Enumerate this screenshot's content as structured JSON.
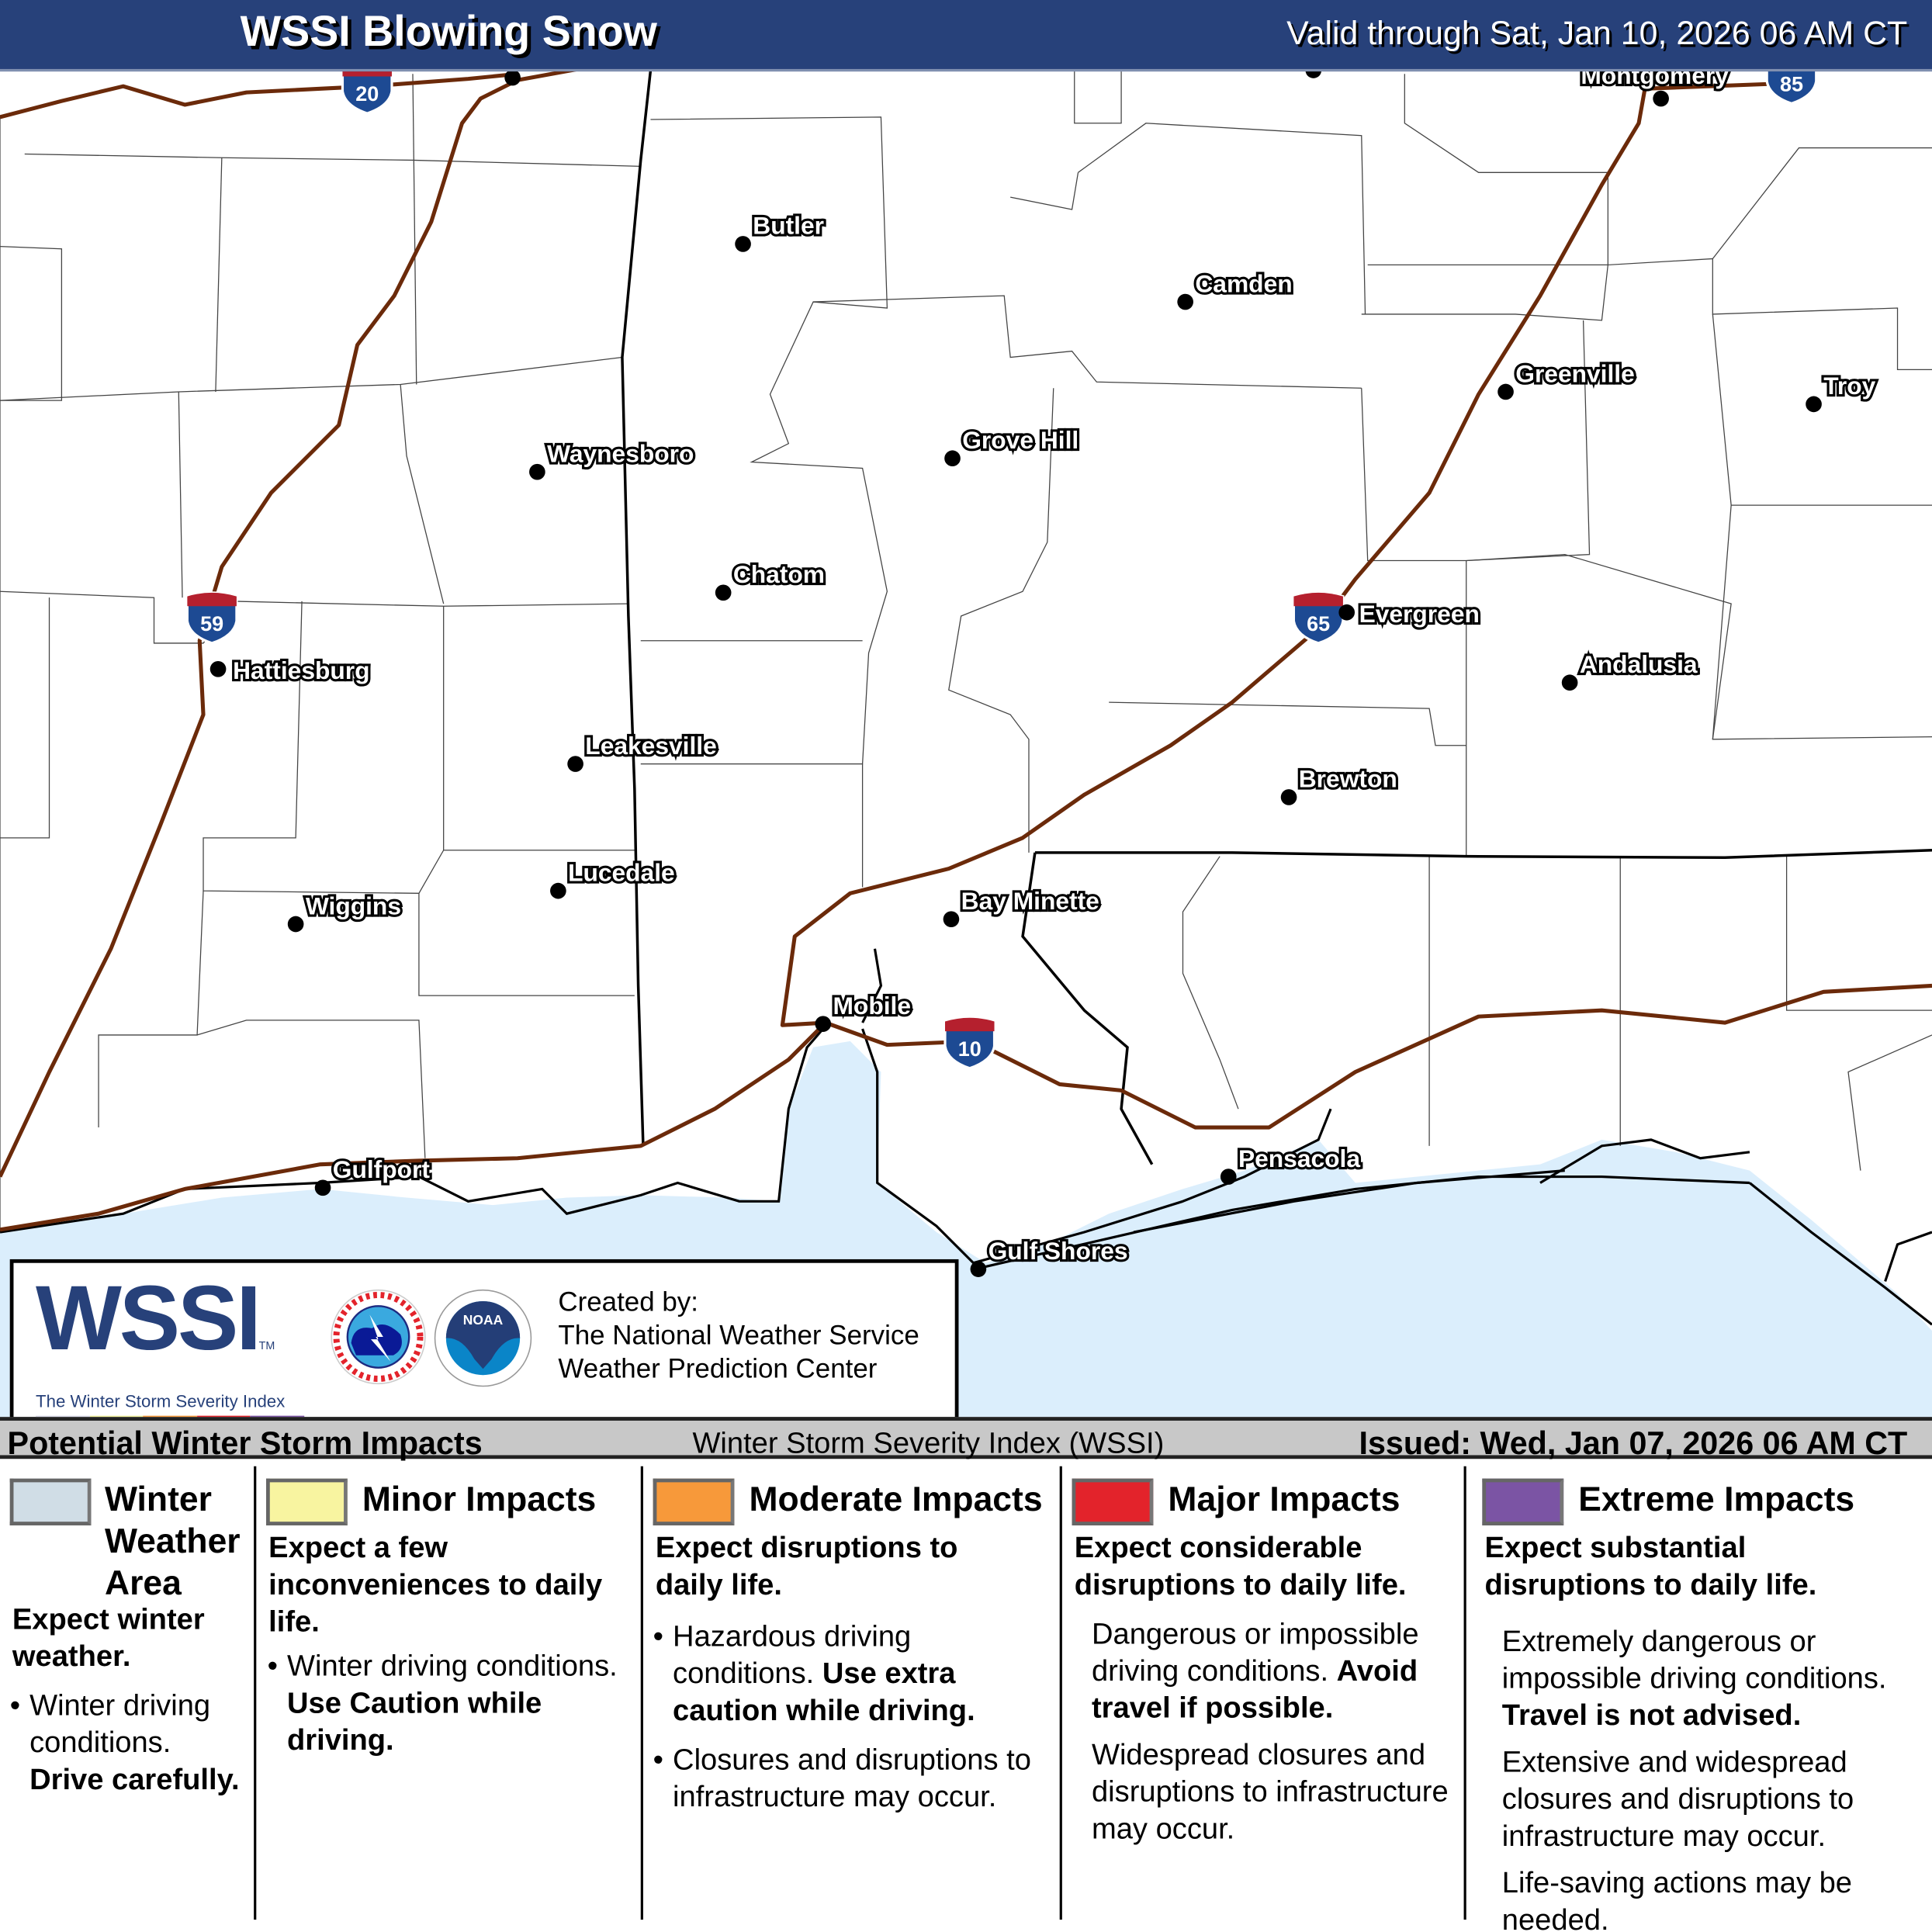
{
  "header": {
    "title": "WSSI Blowing Snow",
    "valid": "Valid through Sat, Jan 10, 2026 06 AM CT"
  },
  "map": {
    "colors": {
      "water": "#dbeefc",
      "interstate": "#6b2a0a",
      "shield_blue": "#1d4a93",
      "shield_red": "#b5202e"
    },
    "interstates": [
      "20",
      "59",
      "65",
      "10",
      "85"
    ],
    "cities": [
      "Butler",
      "Camden",
      "Greenville",
      "Troy",
      "Grove Hill",
      "Waynesboro",
      "Chatom",
      "Evergreen",
      "Hattiesburg",
      "Andalusia",
      "Leakesville",
      "Brewton",
      "Lucedale",
      "Wiggins",
      "Bay Minette",
      "Mobile",
      "Gulfport",
      "Pensacola",
      "Gulf Shores",
      "Montgomery"
    ]
  },
  "credit": {
    "logo": "WSSI",
    "logo_sub": "The Winter Storm Severity Index",
    "tm": "TM",
    "line1": "Created by:",
    "line2": "The National Weather Service",
    "line3": "Weather Prediction Center",
    "nws_seal": "NATIONAL WEATHER SERVICE",
    "noaa_seal": "NOAA",
    "scale_colors": [
      "#d9d9e6",
      "#eeee99",
      "#f7993a",
      "#e3232b",
      "#7b54a4"
    ]
  },
  "impacts_header": {
    "left": "Potential Winter Storm Impacts",
    "center": "Winter Storm Severity Index (WSSI)",
    "right": "Issued: Wed, Jan 07, 2026 06 AM CT"
  },
  "legend": [
    {
      "label": "Winter Weather Area",
      "color": "#d0dde6",
      "sub": "Expect winter weather.",
      "bullets": [
        "Winter driving conditions."
      ],
      "bold": "Drive carefully."
    },
    {
      "label": "Minor Impacts",
      "color": "#f8f4a0",
      "sub": "Expect a few inconveniences to daily life.",
      "bullets": [
        "Winter driving conditions."
      ],
      "bold": "Use Caution while driving."
    },
    {
      "label": "Moderate Impacts",
      "color": "#f7993a",
      "sub": "Expect disruptions to daily life.",
      "bullets": [
        "Hazardous driving conditions.",
        "Closures and disruptions to infrastructure may occur."
      ],
      "bold": "Use extra caution while driving."
    },
    {
      "label": "Major Impacts",
      "color": "#e3232b",
      "sub": "Expect considerable disruptions to daily life.",
      "p1": "Dangerous or impossible driving conditions.",
      "bold": "Avoid travel if possible.",
      "p2": "Widespread closures and disruptions to infrastructure may occur."
    },
    {
      "label": "Extreme Impacts",
      "color": "#7b54a4",
      "sub": "Expect substantial disruptions to daily life.",
      "p1": "Extremely dangerous or impossible driving conditions.",
      "bold": "Travel is not advised.",
      "p2": "Extensive and widespread closures and disruptions to infrastructure may occur.",
      "p3": "Life-saving actions may be needed."
    }
  ]
}
